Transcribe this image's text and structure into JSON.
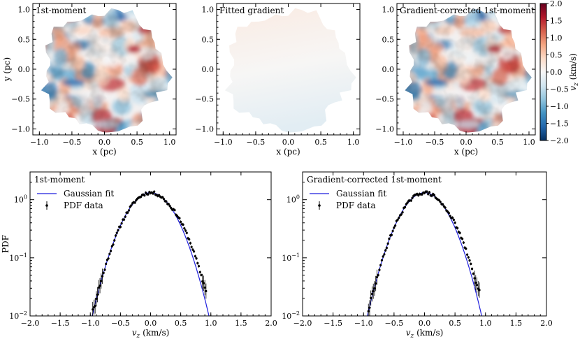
{
  "maps": [
    {
      "title": "1st-moment",
      "xlabel": "x (pc)",
      "ylabel": "y (pc)",
      "variant": "turbulent"
    },
    {
      "title": "Fitted gradient",
      "xlabel": "x (pc)",
      "ylabel": "",
      "variant": "gradient"
    },
    {
      "title": "Gradient-corrected 1st-moment",
      "xlabel": "x (pc)",
      "ylabel": "",
      "variant": "turbulent"
    }
  ],
  "map_axes": {
    "xlim": [
      -1.1,
      1.1
    ],
    "ylim": [
      -1.1,
      1.1
    ],
    "xticks": [
      -1.0,
      -0.5,
      0.0,
      0.5,
      1.0
    ],
    "xticklabels": [
      "−1.0",
      "−0.5",
      "0.0",
      "0.5",
      "1.0"
    ],
    "yticks": [
      1.0,
      0.5,
      0.0,
      -0.5,
      -1.0
    ],
    "yticklabels": [
      "1.0",
      "0.5",
      "0.0",
      "−0.5",
      "−1.0"
    ]
  },
  "colorbar": {
    "label": "v_z (km/s)",
    "label_main": "v",
    "label_sub": "z",
    "label_unit": " (km/s)",
    "range": [
      -2.0,
      2.0
    ],
    "ticks": [
      2.0,
      1.5,
      1.0,
      0.5,
      0.0,
      -0.5,
      -1.0,
      -1.5,
      -2.0
    ],
    "ticklabels": [
      "2.0",
      "1.5",
      "1.0",
      "0.5",
      "0.0",
      "−0.5",
      "−1.0",
      "−1.5",
      "−2.0"
    ],
    "colors": [
      "#053061",
      "#2166ac",
      "#4393c3",
      "#92c5de",
      "#d1e5f0",
      "#f7f7f7",
      "#fddbc7",
      "#f4a582",
      "#d6604d",
      "#b2182b",
      "#67001f"
    ]
  },
  "chart_data": [
    {
      "type": "scatter",
      "title": "1st-moment",
      "xlabel": "v_z (km/s)",
      "xlabel_main": "v",
      "xlabel_sub": "z",
      "xlabel_unit": " (km/s)",
      "ylabel": "PDF",
      "yscale": "log",
      "xlim": [
        -2.0,
        2.0
      ],
      "ylim": [
        0.01,
        3.0
      ],
      "xticks": [
        -2.0,
        -1.5,
        -1.0,
        -0.5,
        0.0,
        0.5,
        1.0,
        1.5,
        2.0
      ],
      "xticklabels": [
        "−2.0",
        "−1.5",
        "−1.0",
        "−0.5",
        "0.0",
        "0.5",
        "1.0",
        "1.5",
        "2.0"
      ],
      "yticks": [
        1,
        0.1,
        0.01
      ],
      "yticklabel_base": "10",
      "yticklabel_exp": [
        "0",
        "−1",
        "−2"
      ],
      "legend": [
        "Gaussian fit",
        "PDF data"
      ],
      "legend_position": "top-left",
      "fit": {
        "name": "Gaussian fit",
        "color": "#1f1fdd",
        "amplitude": 1.32,
        "mean": 0.0,
        "sigma": 0.31
      },
      "series": {
        "name": "PDF data",
        "x_start": -1.0,
        "x_end": 0.92,
        "x_step": 0.02,
        "seed": 11
      }
    },
    {
      "type": "scatter",
      "title": "Gradient-corrected 1st-moment",
      "xlabel": "v_z (km/s)",
      "xlabel_main": "v",
      "xlabel_sub": "z",
      "xlabel_unit": " (km/s)",
      "ylabel": "",
      "yscale": "log",
      "xlim": [
        -2.0,
        2.0
      ],
      "ylim": [
        0.01,
        3.0
      ],
      "xticks": [
        -2.0,
        -1.5,
        -1.0,
        -0.5,
        0.0,
        0.5,
        1.0,
        1.5,
        2.0
      ],
      "xticklabels": [
        "−2.0",
        "−1.5",
        "−1.0",
        "−0.5",
        "0.0",
        "0.5",
        "1.0",
        "1.5",
        "2.0"
      ],
      "yticks": [
        1,
        0.1,
        0.01
      ],
      "yticklabel_base": "10",
      "yticklabel_exp": [
        "0",
        "−1",
        "−2"
      ],
      "legend": [
        "Gaussian fit",
        "PDF data"
      ],
      "legend_position": "top-left",
      "fit": {
        "name": "Gaussian fit",
        "color": "#1f1fdd",
        "amplitude": 1.32,
        "mean": 0.0,
        "sigma": 0.3
      },
      "series": {
        "name": "PDF data",
        "x_start": -0.98,
        "x_end": 0.9,
        "x_step": 0.02,
        "seed": 29
      }
    }
  ]
}
